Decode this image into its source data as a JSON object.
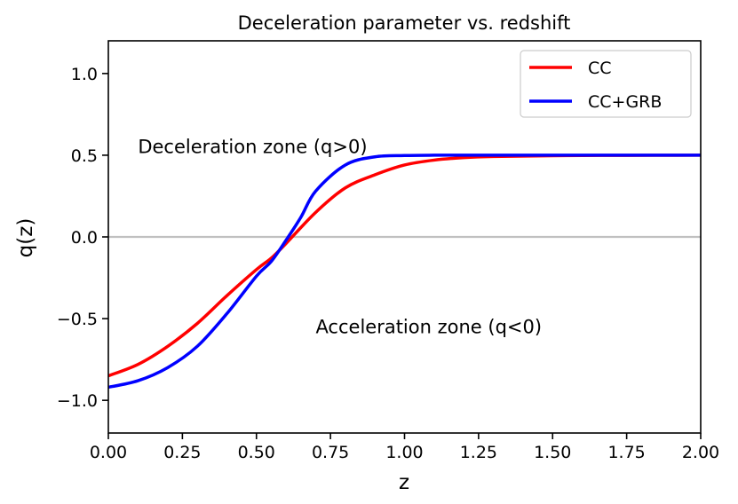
{
  "chart_data": {
    "type": "line",
    "title": "Deceleration parameter vs. redshift",
    "xlabel": "z",
    "ylabel": "q(z)",
    "xlim": [
      0.0,
      2.0
    ],
    "ylim": [
      -1.2,
      1.2
    ],
    "xticks": [
      0.0,
      0.25,
      0.5,
      0.75,
      1.0,
      1.25,
      1.5,
      1.75,
      2.0
    ],
    "xtick_labels": [
      "0.00",
      "0.25",
      "0.50",
      "0.75",
      "1.00",
      "1.25",
      "1.50",
      "1.75",
      "2.00"
    ],
    "yticks": [
      1.0,
      0.5,
      0.0,
      -0.5,
      -1.0
    ],
    "ytick_labels": [
      "1.0",
      "0.5",
      "0.0",
      "−0.5",
      "−1.0"
    ],
    "grid": false,
    "legend_position": "top-right",
    "reference_line": {
      "y": 0.0,
      "color": "#c0c0c0"
    },
    "series": [
      {
        "name": "CC",
        "color": "#ff0000",
        "x": [
          0.0,
          0.1,
          0.2,
          0.3,
          0.4,
          0.5,
          0.55,
          0.6,
          0.7,
          0.8,
          0.9,
          1.0,
          1.1,
          1.2,
          1.3,
          1.5,
          1.75,
          2.0
        ],
        "values": [
          -0.85,
          -0.78,
          -0.67,
          -0.53,
          -0.36,
          -0.2,
          -0.13,
          -0.04,
          0.15,
          0.3,
          0.38,
          0.44,
          0.47,
          0.485,
          0.492,
          0.497,
          0.499,
          0.5
        ]
      },
      {
        "name": "CC+GRB",
        "color": "#0000ff",
        "x": [
          0.0,
          0.1,
          0.2,
          0.3,
          0.4,
          0.5,
          0.55,
          0.6,
          0.65,
          0.7,
          0.8,
          0.9,
          1.0,
          1.1,
          1.2,
          1.5,
          1.75,
          2.0
        ],
        "values": [
          -0.92,
          -0.88,
          -0.8,
          -0.67,
          -0.47,
          -0.24,
          -0.15,
          -0.02,
          0.12,
          0.28,
          0.44,
          0.49,
          0.498,
          0.5,
          0.5,
          0.5,
          0.5,
          0.5
        ]
      }
    ],
    "annotations": [
      {
        "text": "Deceleration zone (q>0)",
        "x": 0.1,
        "y": 0.55
      },
      {
        "text": "Acceleration zone (q<0)",
        "x": 0.7,
        "y": -0.55
      }
    ]
  }
}
